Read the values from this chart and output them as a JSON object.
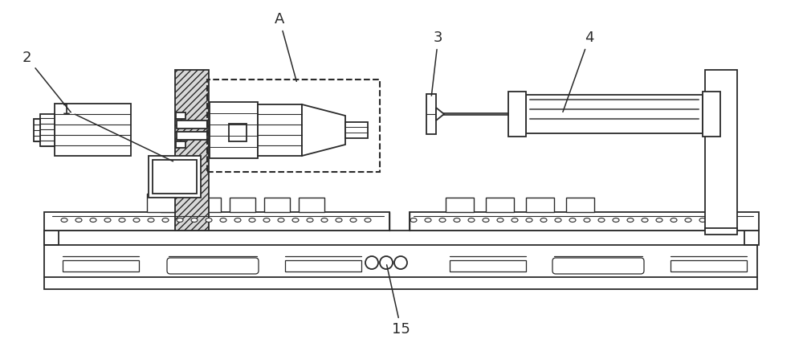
{
  "figsize": [
    10.0,
    4.32
  ],
  "dpi": 100,
  "bg_color": "#ffffff",
  "lc": "#2a2a2a",
  "lc_light": "#888888",
  "hatch_fc": "#d8d8d8"
}
